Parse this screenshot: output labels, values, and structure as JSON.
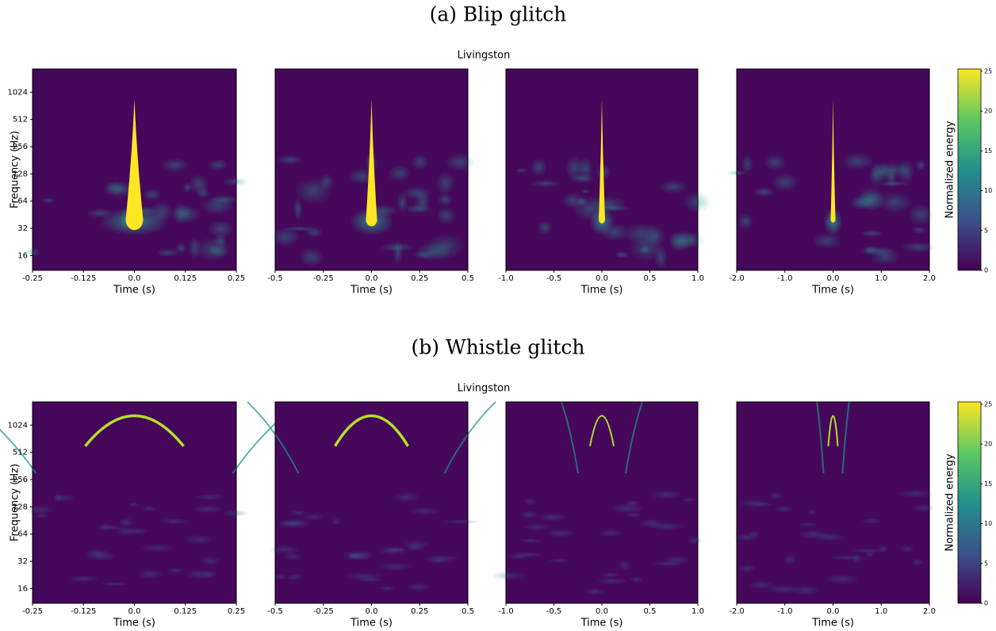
{
  "chart_data": [
    {
      "type": "spectrogram",
      "caption": "(a) Blip glitch",
      "title": "Livingston",
      "ylabel": "Frequency (Hz)",
      "xlabel": "Time (s)",
      "colorbar_label": "Normalized energy",
      "log_y": true,
      "ylim": [
        11,
        1850
      ],
      "yticks": [
        16,
        32,
        64,
        128,
        256,
        512,
        1024
      ],
      "colorbar_lim": [
        0,
        25.3
      ],
      "colorbar_ticks": [
        0,
        5,
        10,
        15,
        20,
        25
      ],
      "panels": [
        {
          "xlim": [
            -0.25,
            0.25
          ],
          "xticks": [
            -0.25,
            -0.125,
            {
              "value": 0,
              "label": "0.0"
            },
            0.125,
            0.25
          ]
        },
        {
          "xlim": [
            -0.5,
            0.5
          ],
          "xticks": [
            -0.5,
            -0.25,
            {
              "value": 0,
              "label": "0.0"
            },
            0.25,
            0.5
          ]
        },
        {
          "xlim": [
            -1,
            1
          ],
          "xticks": [
            {
              "value": -1,
              "label": "-1.0"
            },
            -0.5,
            {
              "value": 0,
              "label": "0.0"
            },
            0.5,
            {
              "value": 1,
              "label": "1.0"
            }
          ]
        },
        {
          "xlim": [
            -2,
            2
          ],
          "xticks": [
            {
              "value": -2,
              "label": "-2.0"
            },
            {
              "value": -1,
              "label": "-1.0"
            },
            {
              "value": 0,
              "label": "0.0"
            },
            {
              "value": 1,
              "label": "1.0"
            },
            {
              "value": 2,
              "label": "2.0"
            }
          ]
        }
      ]
    },
    {
      "type": "spectrogram",
      "caption": "(b) Whistle glitch",
      "title": "Livingston",
      "ylabel": "Frequency (Hz)",
      "xlabel": "Time (s)",
      "colorbar_label": "Normalized energy",
      "log_y": true,
      "ylim": [
        11,
        1850
      ],
      "yticks": [
        16,
        32,
        64,
        128,
        256,
        512,
        1024
      ],
      "colorbar_lim": [
        0,
        25.3
      ],
      "colorbar_ticks": [
        0,
        5,
        10,
        15,
        20,
        25
      ],
      "panels": [
        {
          "xlim": [
            -0.25,
            0.25
          ],
          "xticks": [
            -0.25,
            -0.125,
            {
              "value": 0,
              "label": "0.0"
            },
            0.125,
            0.25
          ]
        },
        {
          "xlim": [
            -0.5,
            0.5
          ],
          "xticks": [
            -0.5,
            -0.25,
            {
              "value": 0,
              "label": "0.0"
            },
            0.25,
            0.5
          ]
        },
        {
          "xlim": [
            -1,
            1
          ],
          "xticks": [
            {
              "value": -1,
              "label": "-1.0"
            },
            -0.5,
            {
              "value": 0,
              "label": "0.0"
            },
            0.5,
            {
              "value": 1,
              "label": "1.0"
            }
          ]
        },
        {
          "xlim": [
            -2,
            2
          ],
          "xticks": [
            {
              "value": -2,
              "label": "-2.0"
            },
            {
              "value": -1,
              "label": "-1.0"
            },
            {
              "value": 0,
              "label": "0.0"
            },
            {
              "value": 1,
              "label": "1.0"
            },
            {
              "value": 2,
              "label": "2.0"
            }
          ]
        }
      ]
    }
  ]
}
